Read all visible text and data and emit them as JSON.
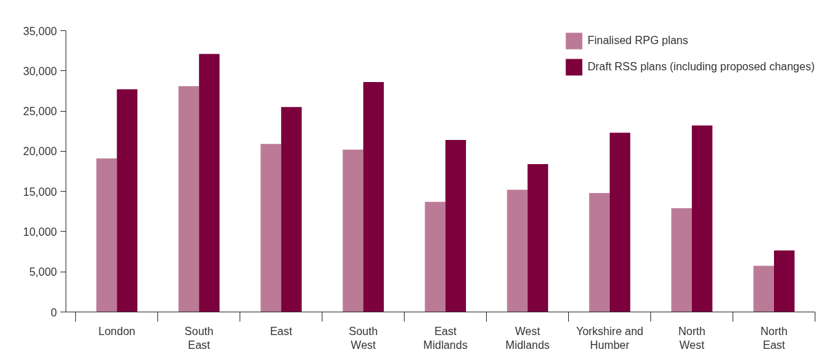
{
  "chart_data": {
    "type": "bar",
    "categories": [
      "London",
      "South East",
      "East",
      "South West",
      "East Midlands",
      "West Midlands",
      "Yorkshire and Humber",
      "North West",
      "North East"
    ],
    "series": [
      {
        "name": "Finalised RPG plans",
        "color": "#bb7b96",
        "values": [
          19100,
          28100,
          20900,
          20200,
          13700,
          15200,
          14800,
          12900,
          5750
        ]
      },
      {
        "name": "Draft RSS plans (including proposed changes)",
        "color": "#7b003c",
        "values": [
          27700,
          32100,
          25500,
          28600,
          21400,
          18400,
          22300,
          23200,
          7650
        ]
      }
    ],
    "ylim": [
      0,
      35000
    ],
    "yticks": [
      {
        "value": 0,
        "label": "0"
      },
      {
        "value": 5000,
        "label": "5,000"
      },
      {
        "value": 10000,
        "label": "10,000"
      },
      {
        "value": 15000,
        "label": "15,000"
      },
      {
        "value": 20000,
        "label": "20,000"
      },
      {
        "value": 25000,
        "label": "25,000"
      },
      {
        "value": 30000,
        "label": "30,000"
      },
      {
        "value": 35000,
        "label": "35,000"
      }
    ],
    "grid": false,
    "legend": "top right"
  }
}
